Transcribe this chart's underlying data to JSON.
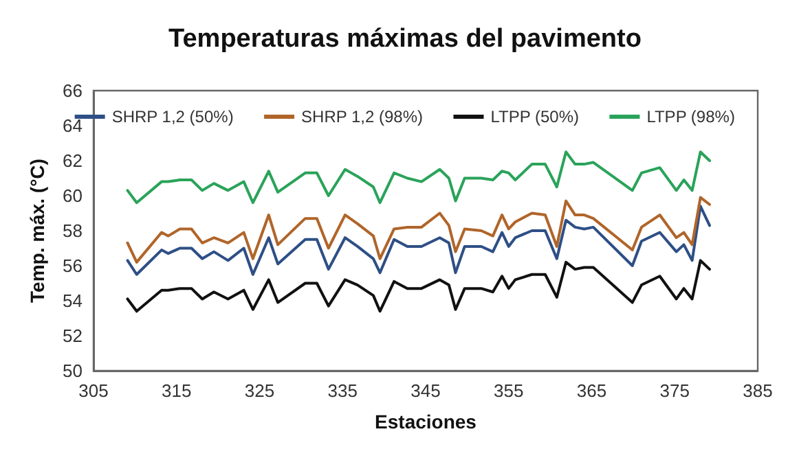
{
  "chart_data": {
    "type": "line",
    "title": "Temperaturas máximas del pavimento",
    "xlabel": "Estaciones",
    "ylabel": "Temp. máx. (°C)",
    "x": [
      309.1,
      310.2,
      313.2,
      314.0,
      315.4,
      316.8,
      318.1,
      319.5,
      321.2,
      323.1,
      324.2,
      326.1,
      327.2,
      330.5,
      331.9,
      333.3,
      335.3,
      336.8,
      338.7,
      339.5,
      341.2,
      342.8,
      344.5,
      346.7,
      347.8,
      348.6,
      349.7,
      351.7,
      353.1,
      354.2,
      355.0,
      355.8,
      357.8,
      359.4,
      360.8,
      361.9,
      363.0,
      364.1,
      365.2,
      369.9,
      371.0,
      373.2,
      375.2,
      376.1,
      377.1,
      378.1,
      379.2
    ],
    "series": [
      {
        "name": "SHRP 1,2 (50%)",
        "color": "#2e4f86",
        "values": [
          56.3,
          55.5,
          56.9,
          56.7,
          57.0,
          57.0,
          56.4,
          56.8,
          56.3,
          57.0,
          55.5,
          57.6,
          56.1,
          57.5,
          57.5,
          55.8,
          57.6,
          57.1,
          56.4,
          55.6,
          57.5,
          57.1,
          57.1,
          57.6,
          57.3,
          55.6,
          57.1,
          57.1,
          56.8,
          57.9,
          57.1,
          57.6,
          58.0,
          58.0,
          56.4,
          58.6,
          58.2,
          58.1,
          58.2,
          56.0,
          57.4,
          57.9,
          56.8,
          57.2,
          56.3,
          59.4,
          58.3
        ]
      },
      {
        "name": "SHRP 1,2 (98%)",
        "color": "#b0652a",
        "values": [
          57.3,
          56.2,
          57.9,
          57.7,
          58.1,
          58.1,
          57.3,
          57.6,
          57.3,
          57.9,
          56.4,
          58.9,
          57.2,
          58.7,
          58.7,
          57.0,
          58.9,
          58.4,
          57.7,
          56.4,
          58.1,
          58.2,
          58.2,
          59.0,
          58.3,
          56.8,
          58.1,
          58.0,
          57.7,
          58.9,
          58.1,
          58.5,
          59.0,
          58.9,
          57.1,
          59.7,
          58.9,
          58.9,
          58.7,
          56.9,
          58.2,
          58.9,
          57.6,
          57.9,
          57.2,
          59.9,
          59.5
        ]
      },
      {
        "name": "LTPP (50%)",
        "color": "#111111",
        "values": [
          54.1,
          53.4,
          54.6,
          54.6,
          54.7,
          54.7,
          54.1,
          54.5,
          54.1,
          54.6,
          53.5,
          55.2,
          53.9,
          55.0,
          55.0,
          53.7,
          55.2,
          54.9,
          54.3,
          53.4,
          55.1,
          54.7,
          54.7,
          55.2,
          54.9,
          53.5,
          54.7,
          54.7,
          54.5,
          55.4,
          54.7,
          55.2,
          55.5,
          55.5,
          54.2,
          56.2,
          55.8,
          55.9,
          55.9,
          53.9,
          54.9,
          55.4,
          54.1,
          54.7,
          54.1,
          56.3,
          55.8
        ]
      },
      {
        "name": "LTPP (98%)",
        "color": "#2aa35a",
        "values": [
          60.3,
          59.6,
          60.8,
          60.8,
          60.9,
          60.9,
          60.3,
          60.7,
          60.3,
          60.8,
          59.6,
          61.4,
          60.2,
          61.3,
          61.3,
          60.0,
          61.5,
          61.1,
          60.5,
          59.6,
          61.3,
          61.0,
          60.8,
          61.5,
          61.0,
          59.7,
          61.0,
          61.0,
          60.9,
          61.4,
          61.3,
          60.9,
          61.8,
          61.8,
          60.5,
          62.5,
          61.8,
          61.8,
          61.9,
          60.3,
          61.3,
          61.6,
          60.3,
          60.9,
          60.3,
          62.5,
          62.0
        ]
      }
    ],
    "xlim": [
      305,
      385
    ],
    "xticks": [
      305,
      315,
      325,
      335,
      345,
      355,
      365,
      375,
      385
    ],
    "ylim": [
      50,
      66
    ],
    "yticks": [
      50,
      52,
      54,
      56,
      58,
      60,
      62,
      64,
      66
    ],
    "grid": false,
    "legend": "top",
    "marker": "none",
    "line_style": "solid"
  }
}
